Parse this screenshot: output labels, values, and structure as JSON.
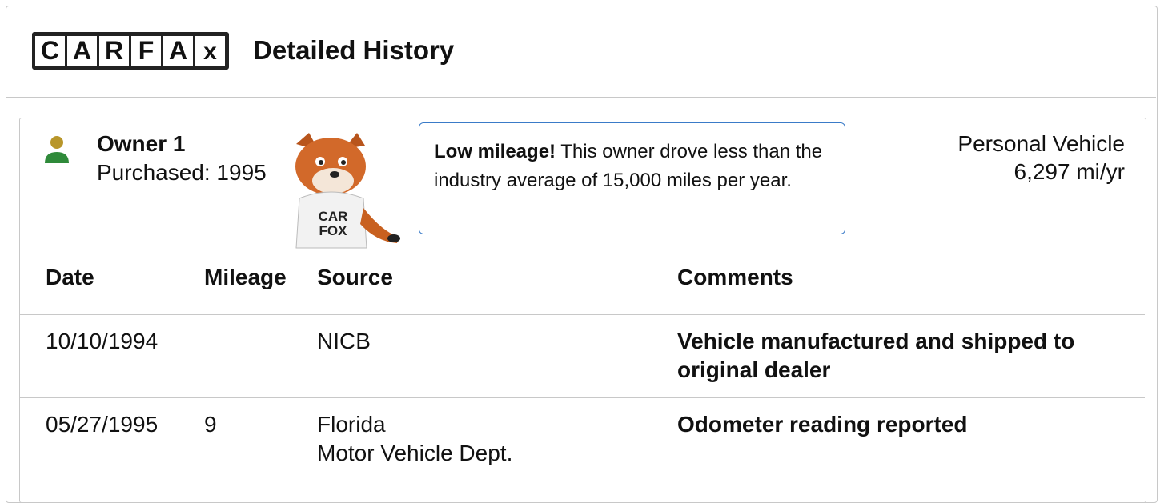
{
  "header": {
    "logo": [
      "C",
      "A",
      "R",
      "F",
      "A",
      "x"
    ],
    "title": "Detailed History"
  },
  "owner": {
    "name": "Owner 1",
    "purchased": "Purchased: 1995",
    "mascot_shirt": [
      "CAR",
      "FOX"
    ],
    "callout": {
      "highlight": "Low mileage!",
      "text": "This owner drove less than the industry average of 15,000 miles per year."
    },
    "usage": "Personal Vehicle",
    "mileage_rate": "6,297 mi/yr"
  },
  "table": {
    "columns": [
      "Date",
      "Mileage",
      "Source",
      "Comments"
    ],
    "rows": [
      {
        "date": "10/10/1994",
        "mileage": null,
        "source": [
          "NICB"
        ],
        "comment": "Vehicle manufactured and shipped to original dealer"
      },
      {
        "date": "05/27/1995",
        "mileage": "9",
        "source": [
          "Florida",
          "Motor Vehicle Dept."
        ],
        "comment": "Odometer reading reported"
      }
    ]
  }
}
